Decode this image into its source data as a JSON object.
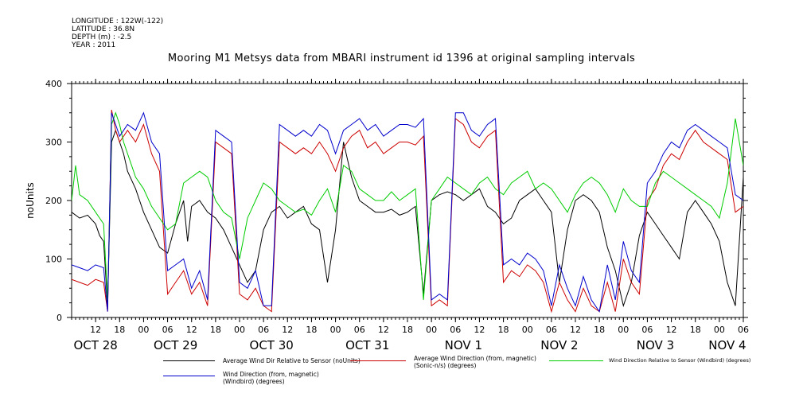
{
  "header": {
    "longitude": "LONGITUDE : 122W(-122)",
    "latitude": "LATITUDE : 36.8N",
    "depth": "DEPTH (m) : -2.5",
    "year": "YEAR : 2011"
  },
  "chart_data": {
    "type": "line",
    "title": "Mooring M1 Metsys data from MBARI instrument id 1396 at original sampling intervals",
    "ylabel": "noUnits",
    "ylim": [
      0,
      400
    ],
    "xlim": [
      6,
      174
    ],
    "y_ticks": [
      0,
      100,
      200,
      300,
      400
    ],
    "y_tick_labels": [
      "0",
      "100",
      "200",
      "300",
      "400"
    ],
    "x_ticks": [
      12,
      18,
      24,
      30,
      36,
      42,
      48,
      54,
      60,
      66,
      72,
      78,
      84,
      90,
      96,
      102,
      108,
      114,
      120,
      126,
      132,
      138,
      144,
      150,
      156,
      162,
      168,
      174
    ],
    "x_tick_labels": [
      "12",
      "18",
      "00",
      "06",
      "12",
      "18",
      "00",
      "06",
      "12",
      "18",
      "00",
      "06",
      "12",
      "18",
      "00",
      "06",
      "12",
      "18",
      "00",
      "06",
      "12",
      "18",
      "00",
      "06",
      "12",
      "18",
      "00",
      "06"
    ],
    "date_labels": [
      {
        "text": "OCT 28",
        "x": 12
      },
      {
        "text": "OCT 29",
        "x": 32
      },
      {
        "text": "OCT 30",
        "x": 56
      },
      {
        "text": "OCT 31",
        "x": 80
      },
      {
        "text": "NOV  1",
        "x": 104
      },
      {
        "text": "NOV  2",
        "x": 128
      },
      {
        "text": "NOV  3",
        "x": 152
      },
      {
        "text": "NOV  4",
        "x": 170
      }
    ],
    "grid": false,
    "legend_position": "bottom",
    "series": [
      {
        "name": "Average Wind Dir Relative to Sensor (noUnits)",
        "color": "#000000",
        "x": [
          6,
          8,
          10,
          12,
          13,
          14,
          15,
          16,
          17,
          18,
          19,
          20,
          22,
          24,
          26,
          28,
          30,
          32,
          34,
          35,
          36,
          38,
          40,
          42,
          44,
          46,
          48,
          50,
          52,
          54,
          56,
          58,
          60,
          62,
          64,
          66,
          68,
          70,
          72,
          74,
          76,
          78,
          80,
          82,
          84,
          86,
          88,
          90,
          92,
          94,
          96,
          98,
          100,
          102,
          104,
          106,
          108,
          110,
          112,
          114,
          116,
          118,
          120,
          122,
          124,
          126,
          128,
          130,
          132,
          134,
          136,
          138,
          140,
          142,
          144,
          146,
          148,
          150,
          152,
          154,
          156,
          158,
          160,
          162,
          164,
          166,
          168,
          170,
          172,
          174
        ],
        "y": [
          180,
          170,
          175,
          160,
          140,
          130,
          20,
          300,
          320,
          300,
          280,
          250,
          220,
          180,
          150,
          120,
          110,
          160,
          200,
          130,
          190,
          200,
          180,
          170,
          150,
          120,
          90,
          60,
          80,
          150,
          180,
          190,
          170,
          180,
          190,
          160,
          150,
          60,
          150,
          300,
          240,
          200,
          190,
          180,
          180,
          185,
          175,
          180,
          190,
          40,
          200,
          210,
          215,
          210,
          200,
          210,
          220,
          190,
          180,
          160,
          170,
          200,
          210,
          220,
          200,
          180,
          60,
          150,
          200,
          210,
          200,
          180,
          120,
          80,
          20,
          60,
          140,
          180,
          160,
          140,
          120,
          100,
          180,
          200,
          180,
          160,
          130,
          60,
          20,
          240
        ]
      },
      {
        "name": "Average Wind Direction (from, magnetic) (Sonic-n/s) (degrees)",
        "color": "#cc0000",
        "x": [
          6,
          8,
          10,
          12,
          14,
          15,
          16,
          17,
          18,
          19,
          20,
          22,
          24,
          26,
          28,
          30,
          32,
          34,
          36,
          38,
          40,
          42,
          44,
          46,
          48,
          50,
          52,
          54,
          56,
          58,
          60,
          62,
          64,
          66,
          68,
          70,
          72,
          74,
          76,
          78,
          80,
          82,
          84,
          86,
          88,
          90,
          92,
          94,
          96,
          98,
          100,
          102,
          104,
          106,
          108,
          110,
          112,
          114,
          116,
          118,
          120,
          122,
          124,
          126,
          128,
          130,
          132,
          134,
          136,
          138,
          140,
          142,
          144,
          146,
          148,
          150,
          152,
          154,
          156,
          158,
          160,
          162,
          164,
          166,
          168,
          170,
          172,
          174
        ],
        "y": [
          65,
          60,
          55,
          65,
          60,
          10,
          355,
          320,
          300,
          310,
          320,
          300,
          330,
          280,
          250,
          40,
          60,
          80,
          40,
          60,
          20,
          300,
          290,
          280,
          40,
          30,
          50,
          20,
          10,
          300,
          290,
          280,
          290,
          280,
          300,
          280,
          250,
          290,
          310,
          320,
          290,
          300,
          280,
          290,
          300,
          300,
          295,
          310,
          20,
          30,
          20,
          340,
          330,
          300,
          290,
          310,
          320,
          60,
          80,
          70,
          90,
          80,
          60,
          10,
          60,
          30,
          10,
          50,
          20,
          10,
          60,
          10,
          100,
          60,
          40,
          200,
          220,
          260,
          280,
          270,
          300,
          320,
          300,
          290,
          280,
          270,
          180,
          190
        ]
      },
      {
        "name": "Wind Direction Relative to Sensor (Windbird) (degrees)",
        "color": "#00cc00",
        "x": [
          6,
          7,
          8,
          10,
          12,
          14,
          15,
          16,
          17,
          18,
          19,
          20,
          22,
          24,
          26,
          28,
          30,
          32,
          34,
          36,
          38,
          40,
          42,
          44,
          46,
          48,
          50,
          52,
          54,
          56,
          58,
          60,
          62,
          64,
          66,
          68,
          70,
          72,
          74,
          76,
          78,
          80,
          82,
          84,
          86,
          88,
          90,
          92,
          94,
          96,
          98,
          100,
          102,
          104,
          106,
          108,
          110,
          112,
          114,
          116,
          118,
          120,
          122,
          124,
          126,
          128,
          130,
          132,
          134,
          136,
          138,
          140,
          142,
          144,
          146,
          148,
          150,
          152,
          154,
          156,
          158,
          160,
          162,
          164,
          166,
          168,
          170,
          172,
          174
        ],
        "y": [
          200,
          260,
          210,
          200,
          180,
          160,
          30,
          330,
          350,
          330,
          300,
          280,
          240,
          220,
          190,
          170,
          150,
          160,
          230,
          240,
          250,
          240,
          200,
          180,
          170,
          100,
          170,
          200,
          230,
          220,
          200,
          190,
          180,
          185,
          175,
          200,
          220,
          180,
          260,
          250,
          220,
          210,
          200,
          200,
          215,
          200,
          210,
          220,
          30,
          200,
          220,
          240,
          230,
          220,
          210,
          230,
          240,
          220,
          210,
          230,
          240,
          250,
          220,
          230,
          220,
          200,
          180,
          210,
          230,
          240,
          230,
          210,
          180,
          220,
          200,
          190,
          190,
          230,
          250,
          240,
          230,
          220,
          210,
          200,
          190,
          170,
          230,
          340,
          260
        ]
      },
      {
        "name": "Wind Direction (from, magnetic) (Windbird) (degrees)",
        "color": "#0000cc",
        "x": [
          6,
          8,
          10,
          12,
          14,
          15,
          16,
          17,
          18,
          19,
          20,
          22,
          24,
          26,
          28,
          30,
          32,
          34,
          36,
          38,
          40,
          42,
          44,
          46,
          48,
          50,
          52,
          54,
          56,
          58,
          60,
          62,
          64,
          66,
          68,
          70,
          72,
          74,
          76,
          78,
          80,
          82,
          84,
          86,
          88,
          90,
          92,
          94,
          96,
          98,
          100,
          102,
          104,
          106,
          108,
          110,
          112,
          114,
          116,
          118,
          120,
          122,
          124,
          126,
          128,
          130,
          132,
          134,
          136,
          138,
          140,
          142,
          144,
          146,
          148,
          150,
          152,
          154,
          156,
          158,
          160,
          162,
          164,
          166,
          168,
          170,
          172,
          174
        ],
        "y": [
          90,
          85,
          80,
          90,
          85,
          10,
          350,
          330,
          310,
          320,
          330,
          320,
          350,
          300,
          280,
          80,
          90,
          100,
          50,
          80,
          30,
          320,
          310,
          300,
          60,
          50,
          80,
          20,
          20,
          330,
          320,
          310,
          320,
          310,
          330,
          320,
          280,
          320,
          330,
          340,
          320,
          330,
          310,
          320,
          330,
          330,
          325,
          340,
          30,
          40,
          30,
          350,
          350,
          320,
          310,
          330,
          340,
          90,
          100,
          90,
          110,
          100,
          80,
          20,
          90,
          50,
          20,
          70,
          30,
          10,
          90,
          30,
          130,
          80,
          60,
          230,
          250,
          280,
          300,
          290,
          320,
          330,
          320,
          310,
          300,
          290,
          210,
          200
        ]
      }
    ]
  }
}
